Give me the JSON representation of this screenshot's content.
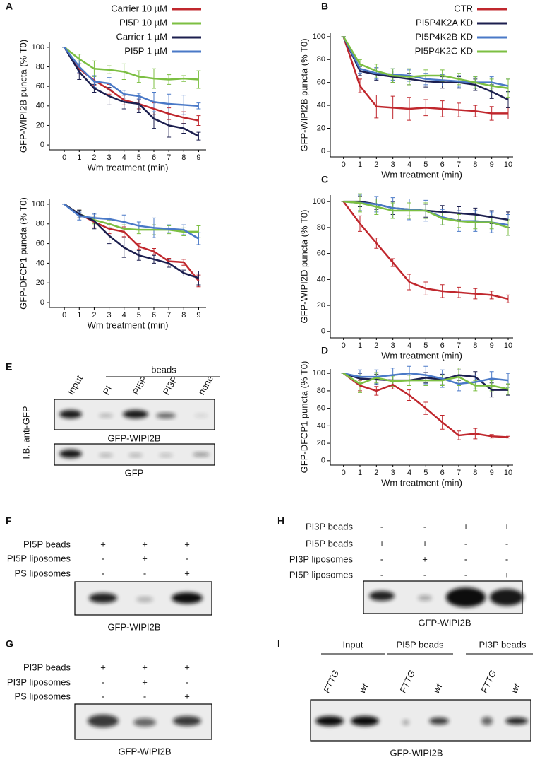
{
  "chart_data": [
    {
      "type": "line",
      "panel": "A",
      "ylabel": "GFP-WIPI2B puncta (% T0)",
      "xlabel": "Wm treatment (min)",
      "x": [
        0,
        1,
        2,
        3,
        4,
        5,
        6,
        7,
        8,
        9
      ],
      "xlim": [
        -1,
        9.5
      ],
      "xticks": [
        0,
        1,
        2,
        3,
        4,
        5,
        6,
        7,
        8,
        9
      ],
      "ylim": [
        -5,
        105
      ],
      "yticks": [
        0,
        20,
        40,
        60,
        80,
        100
      ],
      "legend": "upper right",
      "series": [
        {
          "name": "Carrier 10 µM",
          "color": "#c0272d",
          "values": [
            100,
            78,
            66,
            57,
            46,
            42,
            37,
            32,
            28,
            25
          ],
          "errors": [
            0,
            5,
            5,
            5,
            5,
            5,
            6,
            6,
            6,
            5
          ]
        },
        {
          "name": "PI5P 10 µM",
          "color": "#7cbf42",
          "values": [
            100,
            88,
            78,
            77,
            75,
            70,
            68,
            67,
            68,
            67
          ],
          "errors": [
            0,
            5,
            8,
            4,
            8,
            6,
            10,
            5,
            3,
            9
          ]
        },
        {
          "name": "Carrier 1 µM",
          "color": "#1c1f4f",
          "values": [
            100,
            75,
            58,
            50,
            44,
            42,
            27,
            20,
            17,
            9
          ],
          "errors": [
            0,
            8,
            4,
            9,
            7,
            9,
            10,
            12,
            5,
            4
          ]
        },
        {
          "name": "PI5P 1 µM",
          "color": "#4a79c7",
          "values": [
            100,
            80,
            65,
            63,
            52,
            50,
            44,
            42,
            41,
            40
          ],
          "errors": [
            0,
            6,
            6,
            6,
            4,
            3,
            10,
            10,
            10,
            3
          ]
        }
      ]
    },
    {
      "type": "line",
      "ylabel": "GFP-DFCP1 puncta (% T0)",
      "xlabel": "Wm treatment (min)",
      "x": [
        0,
        1,
        2,
        3,
        4,
        5,
        6,
        7,
        8,
        9
      ],
      "xlim": [
        -1,
        9.5
      ],
      "xticks": [
        0,
        1,
        2,
        3,
        4,
        5,
        6,
        7,
        8,
        9
      ],
      "ylim": [
        -5,
        105
      ],
      "yticks": [
        0,
        20,
        40,
        60,
        80,
        100
      ],
      "series": [
        {
          "color": "#c0272d",
          "values": [
            100,
            90,
            82,
            75,
            72,
            57,
            52,
            42,
            41,
            22
          ],
          "errors": [
            0,
            4,
            6,
            5,
            5,
            3,
            3,
            3,
            3,
            6
          ]
        },
        {
          "color": "#7cbf42",
          "values": [
            100,
            90,
            84,
            80,
            75,
            74,
            74,
            74,
            72,
            72
          ],
          "errors": [
            0,
            4,
            4,
            4,
            4,
            4,
            5,
            4,
            4,
            6
          ]
        },
        {
          "color": "#1c1f4f",
          "values": [
            100,
            90,
            83,
            68,
            56,
            48,
            44,
            40,
            30,
            25
          ],
          "errors": [
            0,
            4,
            8,
            8,
            10,
            5,
            4,
            4,
            3,
            7
          ]
        },
        {
          "color": "#4a79c7",
          "values": [
            100,
            88,
            86,
            85,
            82,
            78,
            76,
            75,
            74,
            65
          ],
          "errors": [
            0,
            4,
            4,
            6,
            7,
            4,
            10,
            4,
            5,
            6
          ]
        }
      ]
    },
    {
      "type": "line",
      "panel": "B",
      "ylabel": "GFP-WIPI2B puncta (% T0)",
      "xlabel": "Wm treatment (min)",
      "x": [
        0,
        1,
        2,
        3,
        4,
        5,
        6,
        7,
        8,
        9,
        10
      ],
      "xlim": [
        -0.8,
        10.3
      ],
      "xticks": [
        0,
        1,
        2,
        3,
        4,
        5,
        6,
        7,
        8,
        9,
        10
      ],
      "ylim": [
        -5,
        103
      ],
      "yticks": [
        0,
        20,
        40,
        60,
        80,
        100
      ],
      "legend": "upper right",
      "series": [
        {
          "name": "CTR",
          "color": "#c0272d",
          "values": [
            100,
            57,
            39,
            38,
            37,
            38,
            37,
            36,
            35,
            33,
            33
          ],
          "errors": [
            0,
            6,
            10,
            10,
            10,
            7,
            7,
            6,
            5,
            6,
            5
          ]
        },
        {
          "name": "PI5P4K2A KD",
          "color": "#1c1f4f",
          "values": [
            100,
            70,
            67,
            65,
            63,
            61,
            60,
            60,
            58,
            52,
            45
          ],
          "errors": [
            0,
            4,
            5,
            5,
            5,
            5,
            5,
            5,
            5,
            6,
            7
          ]
        },
        {
          "name": "PI5P4K2B KD",
          "color": "#4a79c7",
          "values": [
            100,
            72,
            68,
            67,
            66,
            63,
            62,
            61,
            60,
            60,
            57
          ],
          "errors": [
            0,
            4,
            5,
            5,
            5,
            5,
            5,
            5,
            5,
            5,
            6
          ]
        },
        {
          "name": "PI5P4K2C KD",
          "color": "#7cbf42",
          "values": [
            100,
            76,
            70,
            66,
            65,
            66,
            66,
            63,
            60,
            57,
            55
          ],
          "errors": [
            0,
            4,
            6,
            6,
            7,
            5,
            5,
            5,
            5,
            6,
            8
          ]
        }
      ]
    },
    {
      "type": "line",
      "panel": "C",
      "ylabel": "GFP-WIPI2D puncta (% T0)",
      "xlabel": "Wm treatment (min)",
      "x": [
        0,
        1,
        2,
        3,
        4,
        5,
        6,
        7,
        8,
        9,
        10
      ],
      "xlim": [
        -0.8,
        10.3
      ],
      "xticks": [
        0,
        1,
        2,
        3,
        4,
        5,
        6,
        7,
        8,
        9,
        10
      ],
      "ylim": [
        -5,
        105
      ],
      "yticks": [
        0,
        20,
        40,
        60,
        80,
        100
      ],
      "series": [
        {
          "color": "#c0272d",
          "values": [
            100,
            83,
            68,
            53,
            38,
            33,
            31,
            30,
            29,
            28,
            25
          ],
          "errors": [
            0,
            6,
            4,
            3,
            6,
            5,
            5,
            4,
            4,
            3,
            3
          ]
        },
        {
          "color": "#1c1f4f",
          "values": [
            100,
            100,
            98,
            95,
            94,
            93,
            92,
            91,
            90,
            88,
            86
          ],
          "errors": [
            0,
            4,
            4,
            5,
            5,
            5,
            5,
            5,
            5,
            5,
            6
          ]
        },
        {
          "color": "#4a79c7",
          "values": [
            100,
            99,
            98,
            95,
            94,
            93,
            88,
            85,
            85,
            84,
            82
          ],
          "errors": [
            0,
            6,
            6,
            8,
            8,
            8,
            6,
            8,
            8,
            8,
            8
          ]
        },
        {
          "color": "#7cbf42",
          "values": [
            100,
            99,
            96,
            93,
            93,
            93,
            87,
            85,
            84,
            84,
            80
          ],
          "errors": [
            0,
            7,
            6,
            6,
            6,
            6,
            5,
            5,
            5,
            5,
            6
          ]
        }
      ]
    },
    {
      "type": "line",
      "panel": "D",
      "ylabel": "GFP-DFCP1 puncta (% T0)",
      "xlabel": "Wm treatment (min)",
      "x": [
        0,
        1,
        2,
        3,
        4,
        5,
        6,
        7,
        8,
        9,
        10
      ],
      "xlim": [
        -0.8,
        10.3
      ],
      "xticks": [
        0,
        1,
        2,
        3,
        4,
        5,
        6,
        7,
        8,
        9,
        10
      ],
      "ylim": [
        -5,
        105
      ],
      "yticks": [
        0,
        20,
        40,
        60,
        80,
        100
      ],
      "series": [
        {
          "color": "#c0272d",
          "values": [
            100,
            86,
            80,
            87,
            75,
            60,
            44,
            29,
            31,
            28,
            27
          ],
          "errors": [
            0,
            6,
            5,
            5,
            6,
            7,
            8,
            5,
            6,
            2,
            1
          ]
        },
        {
          "color": "#1c1f4f",
          "values": [
            100,
            94,
            93,
            92,
            92,
            95,
            93,
            98,
            96,
            81,
            81
          ],
          "errors": [
            0,
            6,
            6,
            6,
            6,
            6,
            6,
            6,
            6,
            8,
            6
          ]
        },
        {
          "color": "#4a79c7",
          "values": [
            100,
            96,
            96,
            98,
            100,
            98,
            94,
            88,
            90,
            94,
            92
          ],
          "errors": [
            0,
            8,
            8,
            8,
            8,
            10,
            10,
            8,
            8,
            8,
            8
          ]
        },
        {
          "color": "#7cbf42",
          "values": [
            100,
            88,
            95,
            91,
            92,
            92,
            92,
            96,
            86,
            86,
            82
          ],
          "errors": [
            0,
            10,
            6,
            6,
            6,
            6,
            6,
            10,
            6,
            6,
            6
          ]
        }
      ]
    }
  ],
  "blots": {
    "E": {
      "panel": "E",
      "group_label": "beads",
      "lanes": [
        "Input",
        "PI",
        "PI5P",
        "PI3P",
        "none"
      ],
      "row_label": "I.B. anti-GFP",
      "captions": [
        "GFP-WIPI2B",
        "GFP"
      ]
    },
    "F": {
      "panel": "F",
      "rows": [
        {
          "label": "PI5P beads",
          "marks": [
            "+",
            "+",
            "+"
          ]
        },
        {
          "label": "PI5P liposomes",
          "marks": [
            "-",
            "+",
            "-"
          ]
        },
        {
          "label": "PS liposomes",
          "marks": [
            "-",
            "-",
            "+"
          ]
        }
      ],
      "caption": "GFP-WIPI2B"
    },
    "G": {
      "panel": "G",
      "rows": [
        {
          "label": "PI3P beads",
          "marks": [
            "+",
            "+",
            "+"
          ]
        },
        {
          "label": "PI3P liposomes",
          "marks": [
            "-",
            "+",
            "-"
          ]
        },
        {
          "label": "PS liposomes",
          "marks": [
            "-",
            "-",
            "+"
          ]
        }
      ],
      "caption": "GFP-WIPI2B"
    },
    "H": {
      "panel": "H",
      "rows": [
        {
          "label": "PI3P beads",
          "marks": [
            "-",
            "-",
            "+",
            "+"
          ]
        },
        {
          "label": "PI5P beads",
          "marks": [
            "+",
            "+",
            "-",
            "-"
          ]
        },
        {
          "label": "PI3P liposomes",
          "marks": [
            "-",
            "+",
            "-",
            "-"
          ]
        },
        {
          "label": "PI5P liposomes",
          "marks": [
            "-",
            "-",
            "-",
            "+"
          ]
        }
      ],
      "caption": "GFP-WIPI2B"
    },
    "I": {
      "panel": "I",
      "groups": [
        "Input",
        "PI5P beads",
        "PI3P beads"
      ],
      "lanes": [
        "FTTG",
        "wt",
        "FTTG",
        "wt",
        "FTTG",
        "wt"
      ],
      "caption": "GFP-WIPI2B"
    }
  }
}
